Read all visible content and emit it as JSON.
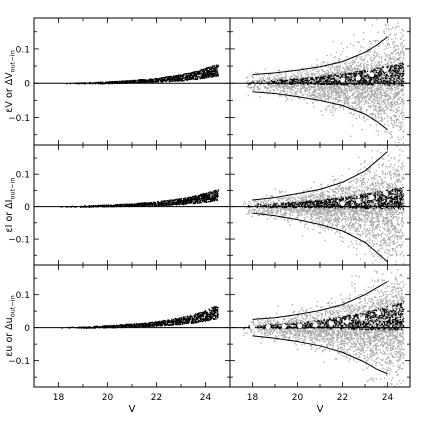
{
  "figure": {
    "background": "#ffffff",
    "axis_color": "#000000",
    "scatter_color_left": "#000000",
    "scatter_color_right": "#a8a8a8",
    "model_point_color": "#ffffff"
  },
  "chart_data": [
    {
      "type": "scatter",
      "panel": "top-left",
      "ylabel": "εV or ΔV",
      "ylabel_subscript": "out−in",
      "xlim": [
        17,
        25
      ],
      "ylim": [
        -0.18,
        0.19
      ],
      "x_ticks": [
        18,
        20,
        22,
        24
      ],
      "y_ticks": [
        -0.1,
        0,
        0.1
      ],
      "y_tick_labels": [
        "−0.1",
        "0",
        "0.1"
      ],
      "zero_line": true,
      "series": [
        {
          "kind": "error_distribution",
          "x": [
            18,
            19,
            20,
            21,
            22,
            23,
            23.5,
            24,
            24.5
          ],
          "upper": [
            0.001,
            0.003,
            0.006,
            0.01,
            0.016,
            0.027,
            0.035,
            0.046,
            0.058
          ],
          "lower": [
            0.0,
            0.0,
            0.0,
            0.002,
            0.004,
            0.008,
            0.011,
            0.016,
            0.022
          ]
        }
      ]
    },
    {
      "type": "scatter",
      "panel": "top-right",
      "xlim": [
        17,
        25
      ],
      "ylim": [
        -0.18,
        0.19
      ],
      "x_ticks": [
        18,
        20,
        22,
        24
      ],
      "y_ticks": [
        -0.1,
        0,
        0.1
      ],
      "zero_line": true,
      "series": [
        {
          "kind": "residual_cloud",
          "x": [
            17.5,
            18,
            19,
            20,
            21,
            22,
            23,
            24,
            24.7
          ],
          "spread": [
            0.02,
            0.022,
            0.028,
            0.036,
            0.05,
            0.07,
            0.1,
            0.13,
            0.15
          ]
        },
        {
          "kind": "error_band",
          "x": [
            17.5,
            18,
            19,
            20,
            21,
            22,
            23,
            24,
            24.7
          ],
          "upper": [
            0.007,
            0.009,
            0.011,
            0.015,
            0.021,
            0.03,
            0.04,
            0.052,
            0.062
          ],
          "lower": [
            -0.001,
            -0.001,
            -0.001,
            -0.002,
            -0.002,
            -0.003,
            -0.004,
            -0.005,
            -0.006
          ]
        },
        {
          "kind": "curve",
          "x": [
            18,
            19,
            20,
            21,
            22,
            23,
            23.5,
            24
          ],
          "y": [
            0.025,
            0.03,
            0.038,
            0.048,
            0.063,
            0.09,
            0.11,
            0.135
          ]
        },
        {
          "kind": "curve",
          "x": [
            18,
            19,
            20,
            21,
            22,
            23,
            23.5,
            24
          ],
          "y": [
            -0.025,
            -0.03,
            -0.039,
            -0.05,
            -0.065,
            -0.09,
            -0.11,
            -0.135
          ]
        },
        {
          "kind": "open_circles",
          "x": [
            22.0,
            22.7,
            23.3,
            23.9
          ],
          "y": [
            0.009,
            0.015,
            0.025,
            0.04
          ]
        }
      ]
    },
    {
      "type": "scatter",
      "panel": "middle-left",
      "ylabel": "εI or ΔI",
      "ylabel_subscript": "out−in",
      "xlim": [
        17,
        25
      ],
      "ylim": [
        -0.18,
        0.19
      ],
      "x_ticks": [
        18,
        20,
        22,
        24
      ],
      "y_ticks": [
        -0.1,
        0,
        0.1
      ],
      "y_tick_labels": [
        "−0.1",
        "0",
        "0.1"
      ],
      "zero_line": true,
      "series": [
        {
          "kind": "error_distribution",
          "x": [
            18,
            19,
            20,
            21,
            22,
            23,
            23.5,
            24,
            24.5
          ],
          "upper": [
            0.002,
            0.004,
            0.007,
            0.011,
            0.017,
            0.027,
            0.034,
            0.044,
            0.055
          ],
          "lower": [
            0.0,
            0.0,
            0.001,
            0.002,
            0.004,
            0.008,
            0.011,
            0.015,
            0.021
          ]
        }
      ]
    },
    {
      "type": "scatter",
      "panel": "middle-right",
      "xlim": [
        17,
        25
      ],
      "ylim": [
        -0.18,
        0.19
      ],
      "x_ticks": [
        18,
        20,
        22,
        24
      ],
      "y_ticks": [
        -0.1,
        0,
        0.1
      ],
      "zero_line": true,
      "series": [
        {
          "kind": "residual_cloud",
          "x": [
            17.5,
            18,
            19,
            20,
            21,
            22,
            23,
            24,
            24.7
          ],
          "spread": [
            0.02,
            0.022,
            0.03,
            0.038,
            0.052,
            0.075,
            0.11,
            0.15,
            0.17
          ]
        },
        {
          "kind": "error_band",
          "x": [
            17.5,
            18,
            19,
            20,
            21,
            22,
            23,
            24,
            24.7
          ],
          "upper": [
            0.007,
            0.009,
            0.012,
            0.016,
            0.022,
            0.031,
            0.042,
            0.053,
            0.063
          ],
          "lower": [
            -0.001,
            -0.001,
            -0.001,
            -0.002,
            -0.002,
            -0.003,
            -0.004,
            -0.005,
            -0.006
          ]
        },
        {
          "kind": "curve",
          "x": [
            18,
            19,
            20,
            21,
            22,
            23,
            23.5,
            24
          ],
          "y": [
            0.02,
            0.028,
            0.04,
            0.053,
            0.075,
            0.11,
            0.14,
            0.17
          ]
        },
        {
          "kind": "curve",
          "x": [
            18,
            19,
            20,
            21,
            22,
            23,
            23.5,
            24
          ],
          "y": [
            -0.02,
            -0.028,
            -0.04,
            -0.055,
            -0.075,
            -0.11,
            -0.14,
            -0.17
          ]
        },
        {
          "kind": "open_circles",
          "x": [
            22.0,
            22.7,
            23.3,
            23.9
          ],
          "y": [
            0.01,
            0.018,
            0.028,
            0.042
          ]
        }
      ]
    },
    {
      "type": "scatter",
      "panel": "bottom-left",
      "ylabel": "εu or Δu",
      "ylabel_subscript": "out−in",
      "xlim": [
        17,
        25
      ],
      "ylim": [
        -0.18,
        0.19
      ],
      "x_ticks": [
        18,
        20,
        22,
        24
      ],
      "x_tick_labels": [
        "18",
        "20",
        "22",
        "24"
      ],
      "y_ticks": [
        -0.1,
        0,
        0.1
      ],
      "y_tick_labels": [
        "−0.1",
        "0",
        "0.1"
      ],
      "xlabel": "V",
      "zero_line": true,
      "series": [
        {
          "kind": "error_distribution",
          "x": [
            18,
            19,
            20,
            21,
            22,
            23,
            23.5,
            24,
            24.5
          ],
          "upper": [
            0.002,
            0.004,
            0.008,
            0.013,
            0.02,
            0.033,
            0.042,
            0.055,
            0.07
          ],
          "lower": [
            0.0,
            0.0,
            0.001,
            0.003,
            0.006,
            0.011,
            0.015,
            0.021,
            0.028
          ]
        }
      ]
    },
    {
      "type": "scatter",
      "panel": "bottom-right",
      "xlim": [
        17,
        25
      ],
      "ylim": [
        -0.18,
        0.19
      ],
      "x_ticks": [
        18,
        20,
        22,
        24
      ],
      "x_tick_labels": [
        "18",
        "20",
        "22",
        "24"
      ],
      "y_ticks": [
        -0.1,
        0,
        0.1
      ],
      "xlabel": "V",
      "zero_line": true,
      "series": [
        {
          "kind": "residual_cloud",
          "x": [
            17.5,
            18,
            19,
            20,
            21,
            22,
            23,
            24,
            24.7
          ],
          "spread": [
            0.02,
            0.024,
            0.03,
            0.04,
            0.055,
            0.075,
            0.1,
            0.13,
            0.15
          ]
        },
        {
          "kind": "error_band",
          "x": [
            17.5,
            18,
            19,
            20,
            21,
            22,
            23,
            24,
            24.7
          ],
          "upper": [
            0.008,
            0.01,
            0.013,
            0.017,
            0.025,
            0.036,
            0.05,
            0.067,
            0.083
          ],
          "lower": [
            -0.001,
            -0.001,
            -0.001,
            -0.002,
            -0.002,
            -0.003,
            -0.004,
            -0.005,
            -0.006
          ]
        },
        {
          "kind": "curve",
          "x": [
            18,
            19,
            20,
            21,
            22,
            23,
            23.5,
            24
          ],
          "y": [
            0.025,
            0.03,
            0.04,
            0.052,
            0.07,
            0.1,
            0.12,
            0.14
          ]
        },
        {
          "kind": "curve",
          "x": [
            18,
            19,
            20,
            21,
            22,
            23,
            23.5,
            24
          ],
          "y": [
            -0.025,
            -0.032,
            -0.042,
            -0.055,
            -0.075,
            -0.105,
            -0.125,
            -0.14
          ]
        },
        {
          "kind": "open_circles",
          "x": [
            18,
            18.7,
            19.4,
            20.1,
            20.8,
            21.5,
            22.2,
            22.9,
            23.6,
            24.1
          ],
          "y": [
            0.002,
            0.003,
            0.004,
            0.005,
            0.008,
            0.012,
            0.018,
            0.028,
            0.045,
            0.06
          ]
        }
      ]
    }
  ]
}
